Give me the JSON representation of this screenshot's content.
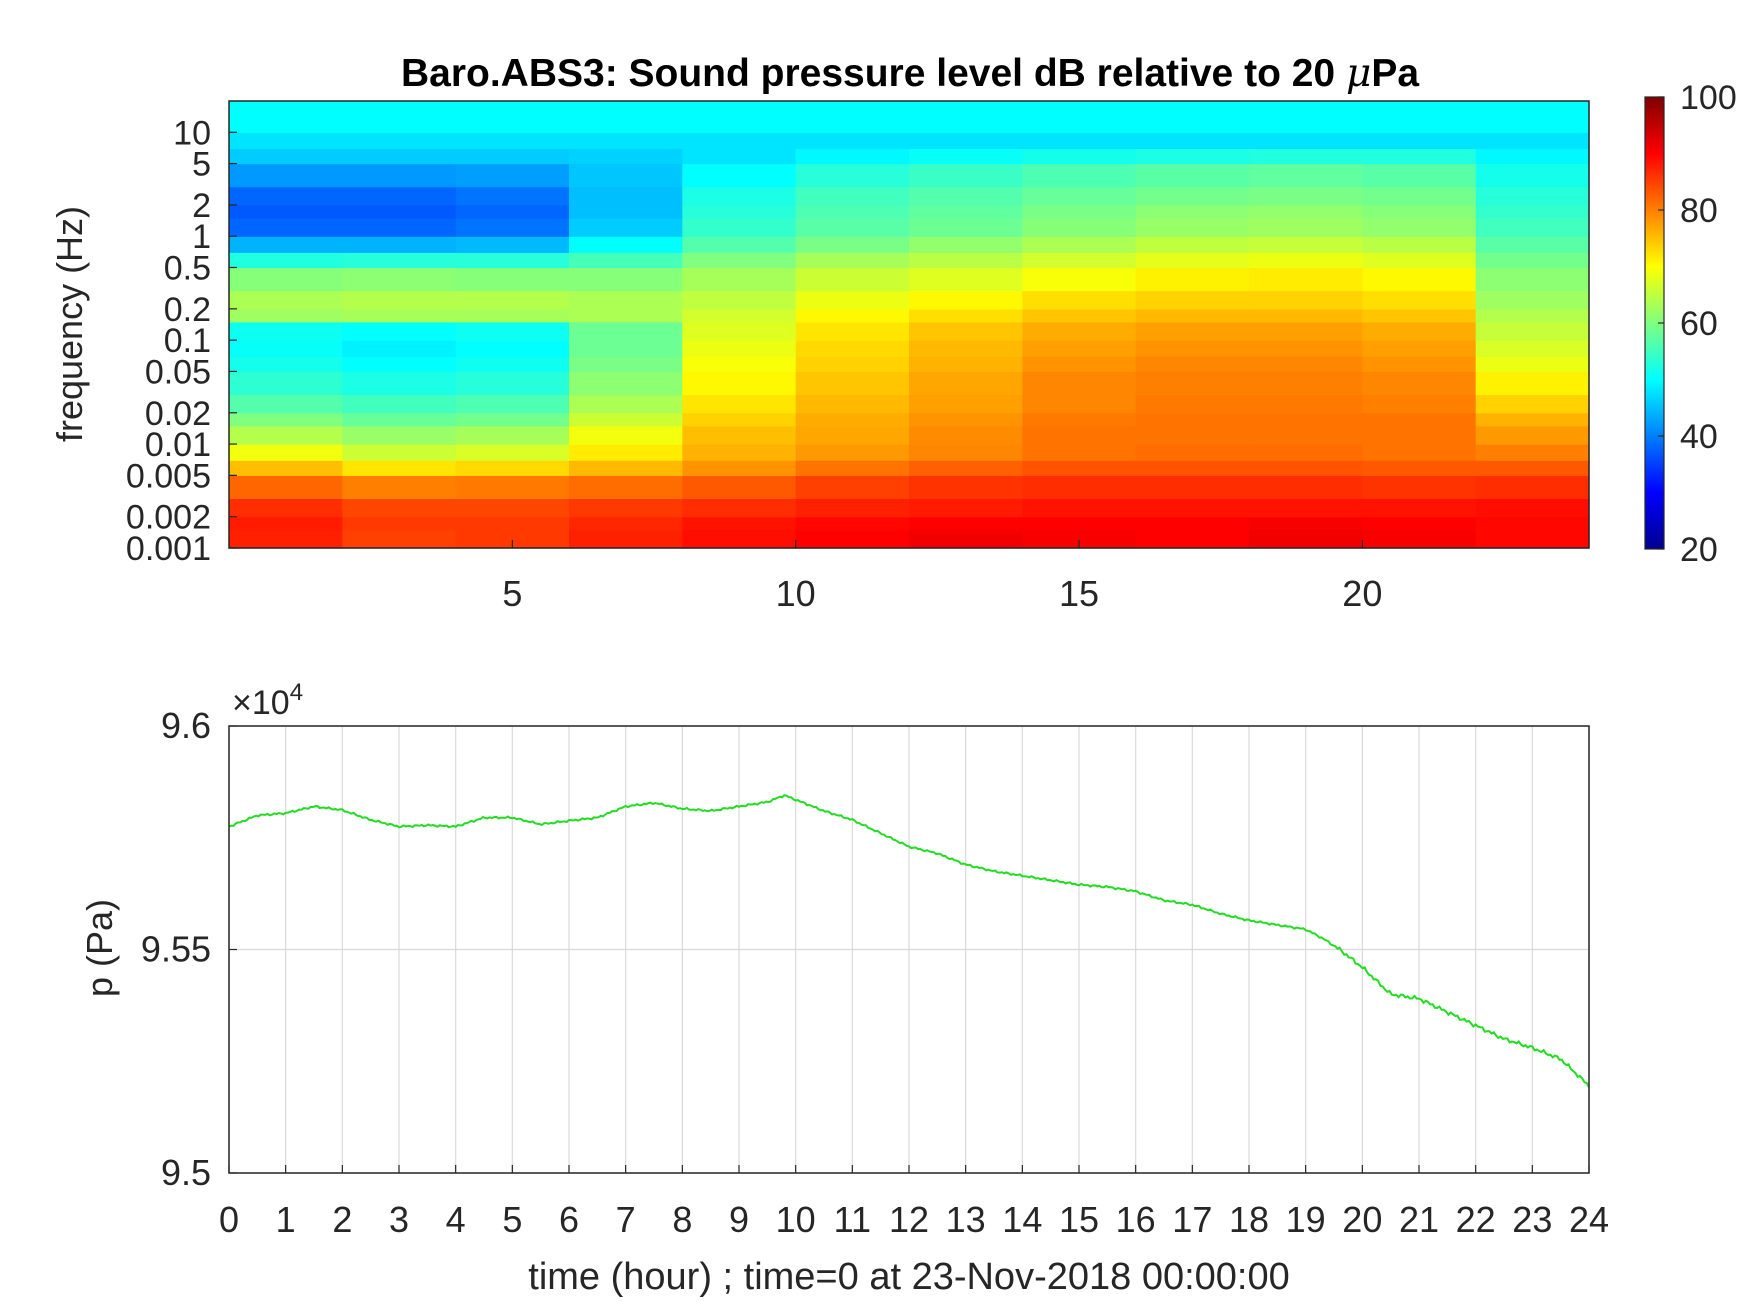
{
  "chart_data": [
    {
      "type": "heatmap",
      "title_main": "Baro.ABS3: Sound pressure level dB relative to 20 ",
      "title_mu": "μ",
      "title_unit": "Pa",
      "ylabel": "frequency (Hz)",
      "xlabel": "",
      "y_scale": "log",
      "ylim": [
        0.001,
        20
      ],
      "xlim": [
        0,
        24
      ],
      "y_ticks": [
        {
          "value": 0.001,
          "label": "0.001"
        },
        {
          "value": 0.002,
          "label": "0.002"
        },
        {
          "value": 0.005,
          "label": "0.005"
        },
        {
          "value": 0.01,
          "label": "0.01"
        },
        {
          "value": 0.02,
          "label": "0.02"
        },
        {
          "value": 0.05,
          "label": "0.05"
        },
        {
          "value": 0.1,
          "label": "0.1"
        },
        {
          "value": 0.2,
          "label": "0.2"
        },
        {
          "value": 0.5,
          "label": "0.5"
        },
        {
          "value": 1,
          "label": "1"
        },
        {
          "value": 2,
          "label": "2"
        },
        {
          "value": 5,
          "label": "5"
        },
        {
          "value": 10,
          "label": "10"
        }
      ],
      "x_ticks": [
        {
          "value": 5,
          "label": "5"
        },
        {
          "value": 10,
          "label": "10"
        },
        {
          "value": 15,
          "label": "15"
        },
        {
          "value": 20,
          "label": "20"
        }
      ],
      "colorbar": {
        "colormap": "jet",
        "range": [
          20,
          100
        ],
        "ticks": [
          {
            "value": 20,
            "label": "20"
          },
          {
            "value": 40,
            "label": "40"
          },
          {
            "value": 60,
            "label": "60"
          },
          {
            "value": 80,
            "label": "80"
          },
          {
            "value": 100,
            "label": "100"
          }
        ]
      },
      "frequencies_hz": [
        0.001,
        0.0015,
        0.002,
        0.003,
        0.005,
        0.007,
        0.01,
        0.015,
        0.02,
        0.03,
        0.05,
        0.07,
        0.1,
        0.15,
        0.2,
        0.3,
        0.5,
        0.7,
        1,
        1.5,
        2,
        3,
        5,
        7,
        10,
        20
      ],
      "times_hour": [
        0,
        2,
        4,
        6,
        8,
        10,
        12,
        14,
        16,
        18,
        20,
        22,
        24
      ],
      "spl_db": [
        [
          90,
          85,
          85,
          86,
          89,
          89,
          91,
          91,
          90,
          90,
          92,
          89,
          90
        ],
        [
          90,
          86,
          85,
          86,
          88,
          89,
          90,
          90,
          90,
          90,
          91,
          89,
          90
        ],
        [
          88,
          85,
          84,
          85,
          86,
          87,
          88,
          88,
          89,
          88,
          89,
          88,
          90
        ],
        [
          84,
          80,
          80,
          81,
          82,
          84,
          86,
          86,
          87,
          86,
          87,
          85,
          88
        ],
        [
          78,
          72,
          72,
          74,
          77,
          80,
          82,
          83,
          84,
          83,
          84,
          82,
          84
        ],
        [
          72,
          66,
          66,
          68,
          75,
          77,
          79,
          80,
          82,
          81,
          82,
          80,
          80
        ],
        [
          66,
          62,
          62,
          64,
          74,
          76,
          78,
          80,
          82,
          80,
          82,
          80,
          76
        ],
        [
          62,
          58,
          58,
          60,
          72,
          75,
          78,
          79,
          82,
          80,
          82,
          80,
          72
        ],
        [
          58,
          55,
          55,
          57,
          70,
          74,
          77,
          78,
          81,
          80,
          81,
          79,
          68
        ],
        [
          55,
          52,
          52,
          54,
          68,
          73,
          76,
          78,
          81,
          79,
          81,
          78,
          64
        ],
        [
          53,
          50,
          50,
          52,
          67,
          72,
          75,
          77,
          80,
          79,
          80,
          77,
          60
        ],
        [
          52,
          49,
          49,
          51,
          66,
          71,
          75,
          76,
          79,
          78,
          79,
          76,
          58
        ],
        [
          52,
          50,
          50,
          52,
          65,
          70,
          74,
          75,
          78,
          77,
          78,
          75,
          56
        ],
        [
          62,
          63,
          63,
          63,
          64,
          69,
          72,
          73,
          76,
          75,
          76,
          73,
          55
        ],
        [
          63,
          64,
          64,
          64,
          63,
          67,
          70,
          71,
          74,
          73,
          74,
          71,
          54
        ],
        [
          60,
          61,
          61,
          60,
          61,
          65,
          67,
          68,
          71,
          71,
          72,
          69,
          53
        ],
        [
          52,
          53,
          53,
          53,
          58,
          62,
          64,
          65,
          68,
          68,
          69,
          66,
          52
        ],
        [
          44,
          44,
          44,
          45,
          55,
          58,
          61,
          62,
          65,
          65,
          66,
          63,
          51
        ],
        [
          38,
          38,
          38,
          40,
          52,
          56,
          58,
          59,
          62,
          62,
          63,
          60,
          50
        ],
        [
          37,
          37,
          37,
          39,
          51,
          55,
          57,
          58,
          61,
          61,
          62,
          59,
          49
        ],
        [
          38,
          38,
          38,
          40,
          50,
          54,
          56,
          57,
          59,
          59,
          60,
          58,
          48
        ],
        [
          42,
          42,
          42,
          43,
          48,
          52,
          54,
          55,
          57,
          57,
          58,
          56,
          47
        ],
        [
          46,
          46,
          46,
          46,
          47,
          49,
          50,
          51,
          52,
          52,
          53,
          52,
          47
        ],
        [
          48,
          48,
          48,
          48,
          48,
          48,
          48,
          48,
          48,
          48,
          48,
          48,
          48
        ],
        [
          50,
          50,
          50,
          50,
          50,
          50,
          50,
          50,
          50,
          50,
          50,
          50,
          50
        ],
        [
          50,
          50,
          50,
          50,
          50,
          50,
          50,
          50,
          50,
          50,
          50,
          50,
          50
        ]
      ]
    },
    {
      "type": "line",
      "xlabel": "time (hour) ; time=0 at 23-Nov-2018 00:00:00",
      "ylabel": "p (Pa)",
      "xlim": [
        0,
        24
      ],
      "ylim": [
        95000,
        96000
      ],
      "grid": true,
      "y_exponent_prefix": "×10",
      "y_exponent": "4",
      "x_ticks": [
        "0",
        "1",
        "2",
        "3",
        "4",
        "5",
        "6",
        "7",
        "8",
        "9",
        "10",
        "11",
        "12",
        "13",
        "14",
        "15",
        "16",
        "17",
        "18",
        "19",
        "20",
        "21",
        "22",
        "23",
        "24"
      ],
      "y_ticks": [
        {
          "value": 95000,
          "label": "9.5"
        },
        {
          "value": 95500,
          "label": "9.55"
        },
        {
          "value": 96000,
          "label": "9.6"
        }
      ],
      "series": [
        {
          "color": "#22dd22",
          "x": [
            0,
            0.5,
            1,
            1.5,
            2,
            2.5,
            3,
            3.5,
            4,
            4.5,
            5,
            5.5,
            6,
            6.5,
            7,
            7.5,
            8,
            8.5,
            9,
            9.5,
            9.8,
            10.5,
            11,
            11.5,
            12,
            12.5,
            13,
            13.5,
            14,
            14.5,
            15,
            15.5,
            16,
            16.5,
            17,
            17.5,
            18,
            18.5,
            19,
            19.3,
            19.6,
            20,
            20.5,
            21,
            21.5,
            22,
            22.5,
            23,
            23.5,
            24
          ],
          "y": [
            95775,
            95800,
            95805,
            95820,
            95812,
            95790,
            95775,
            95778,
            95775,
            95795,
            95795,
            95780,
            95788,
            95795,
            95820,
            95828,
            95815,
            95810,
            95820,
            95830,
            95845,
            95810,
            95790,
            95760,
            95730,
            95715,
            95690,
            95675,
            95665,
            95655,
            95645,
            95640,
            95630,
            95610,
            95600,
            95580,
            95565,
            95555,
            95545,
            95525,
            95500,
            95460,
            95400,
            95390,
            95360,
            95330,
            95300,
            95280,
            95255,
            95195
          ]
        }
      ]
    }
  ]
}
